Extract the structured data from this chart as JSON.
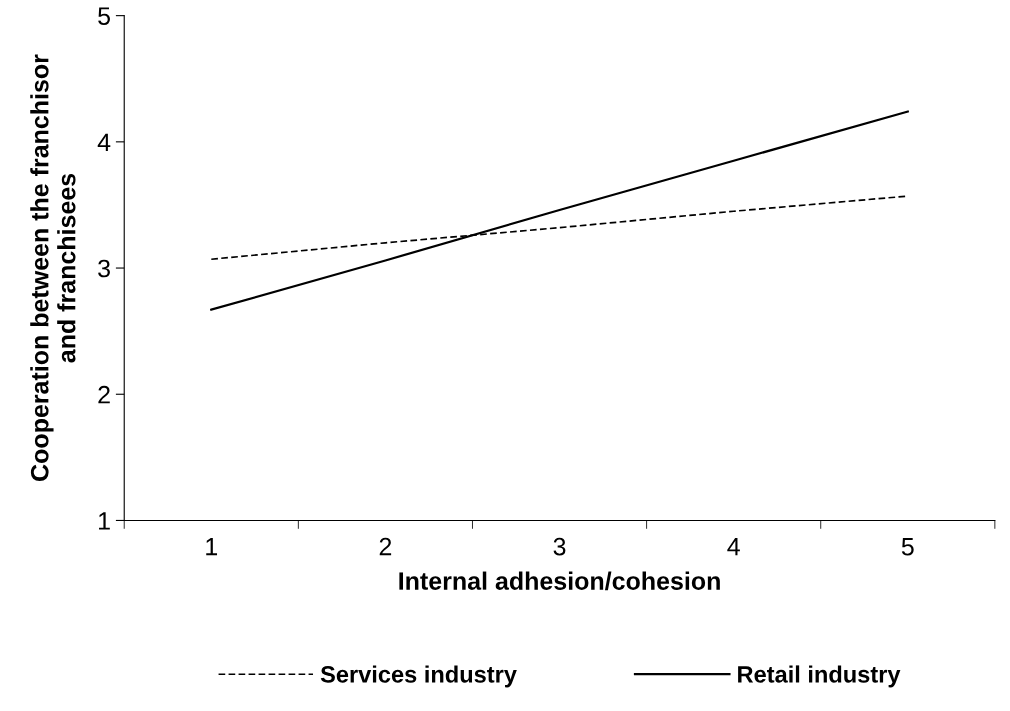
{
  "chart_data": {
    "type": "line",
    "xlabel": "Internal adhesion/cohesion",
    "ylabel": "Cooperation between the franchisor\nand franchisees",
    "categories": [
      "1",
      "2",
      "3",
      "4",
      "5"
    ],
    "series": [
      {
        "name": "Services industry",
        "color": "#000000",
        "line_style": "dashed",
        "values": [
          3.07,
          3.2,
          3.32,
          3.45,
          3.57
        ]
      },
      {
        "name": "Retail industry",
        "color": "#000000",
        "line_style": "solid",
        "values": [
          2.67,
          3.06,
          3.46,
          3.85,
          4.24
        ]
      }
    ],
    "ylim": [
      1,
      5
    ],
    "yticks": [
      1,
      2,
      3,
      4,
      5
    ],
    "grid": false,
    "legend": "bottom",
    "marker": "none"
  }
}
